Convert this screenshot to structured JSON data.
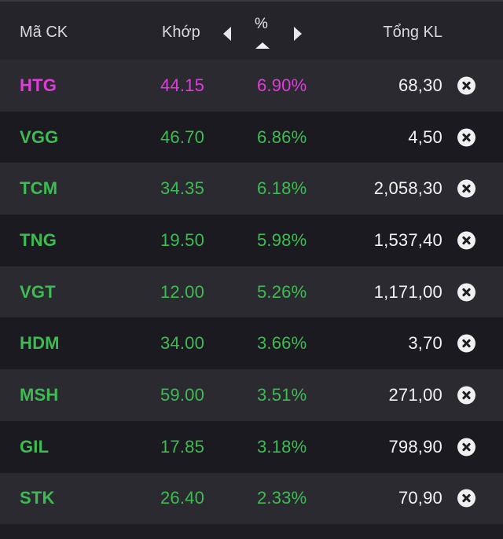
{
  "header": {
    "symbol_label": "Mã CK",
    "match_label": "Khớp",
    "percent_label": "%",
    "total_volume_label": "Tổng KL"
  },
  "colors": {
    "ceiling": "#e23bdc",
    "up": "#3dbc52",
    "volume": "#f2f2f2",
    "row_dark": "#1b1a20",
    "row_light": "#2b2a31"
  },
  "rows": [
    {
      "symbol": "HTG",
      "price": "44.15",
      "change_pct": "6.90%",
      "total_volume": "68,30",
      "status": "ceiling",
      "remove_icon": "close-circle-icon"
    },
    {
      "symbol": "VGG",
      "price": "46.70",
      "change_pct": "6.86%",
      "total_volume": "4,50",
      "status": "up",
      "remove_icon": "close-circle-icon"
    },
    {
      "symbol": "TCM",
      "price": "34.35",
      "change_pct": "6.18%",
      "total_volume": "2,058,30",
      "status": "up",
      "remove_icon": "close-circle-icon"
    },
    {
      "symbol": "TNG",
      "price": "19.50",
      "change_pct": "5.98%",
      "total_volume": "1,537,40",
      "status": "up",
      "remove_icon": "close-circle-icon"
    },
    {
      "symbol": "VGT",
      "price": "12.00",
      "change_pct": "5.26%",
      "total_volume": "1,171,00",
      "status": "up",
      "remove_icon": "close-circle-icon"
    },
    {
      "symbol": "HDM",
      "price": "34.00",
      "change_pct": "3.66%",
      "total_volume": "3,70",
      "status": "up",
      "remove_icon": "close-circle-icon"
    },
    {
      "symbol": "MSH",
      "price": "59.00",
      "change_pct": "3.51%",
      "total_volume": "271,00",
      "status": "up",
      "remove_icon": "close-circle-icon"
    },
    {
      "symbol": "GIL",
      "price": "17.85",
      "change_pct": "3.18%",
      "total_volume": "798,90",
      "status": "up",
      "remove_icon": "close-circle-icon"
    },
    {
      "symbol": "STK",
      "price": "26.40",
      "change_pct": "2.33%",
      "total_volume": "70,90",
      "status": "up",
      "remove_icon": "close-circle-icon"
    }
  ]
}
